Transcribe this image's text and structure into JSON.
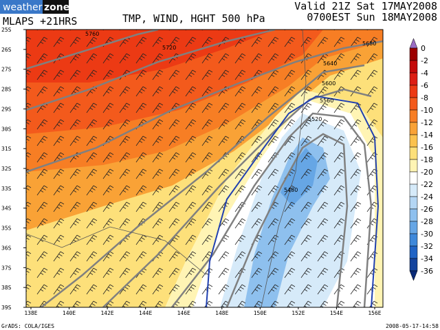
{
  "header": {
    "brand_left": "weather",
    "brand_right": "zone",
    "model": "MLAPS +21HRS",
    "title": "TMP, WIND, HGHT 500 hPa",
    "valid_line1": "Valid 21Z Sat 17MAY2008",
    "valid_line2": "0700EST Sun 18MAY2008"
  },
  "map": {
    "lat_labels": [
      "25S",
      "26S",
      "27S",
      "28S",
      "29S",
      "30S",
      "31S",
      "32S",
      "33S",
      "34S",
      "35S",
      "36S",
      "37S",
      "38S",
      "39S"
    ],
    "lon_labels": [
      "138E",
      "140E",
      "142E",
      "144E",
      "146E",
      "148E",
      "150E",
      "152E",
      "154E",
      "156E"
    ],
    "contour_labels": [
      "5760",
      "5720",
      "5680",
      "5640",
      "5600",
      "5560",
      "5520",
      "5480"
    ]
  },
  "colorbar": {
    "labels": [
      0,
      -2,
      -4,
      -6,
      -8,
      -10,
      -12,
      -14,
      -16,
      -18,
      -20,
      -22,
      -24,
      -26,
      -28,
      -30,
      -32,
      -34,
      -36
    ],
    "colors": [
      "#9a6cc4",
      "#9c0000",
      "#c40a0a",
      "#dc1e14",
      "#ec3a14",
      "#f35a1c",
      "#f77e24",
      "#f9a236",
      "#fbc24e",
      "#fde07a",
      "#fff4b4",
      "#ffffff",
      "#d6eaf9",
      "#b4d6f4",
      "#8ec0ee",
      "#66a6e5",
      "#3e88da",
      "#2064c6",
      "#14449e",
      "#0a2a78"
    ]
  },
  "footer": {
    "left": "GrADS: COLA/IGES",
    "right": "2008-05-17-14:58"
  }
}
